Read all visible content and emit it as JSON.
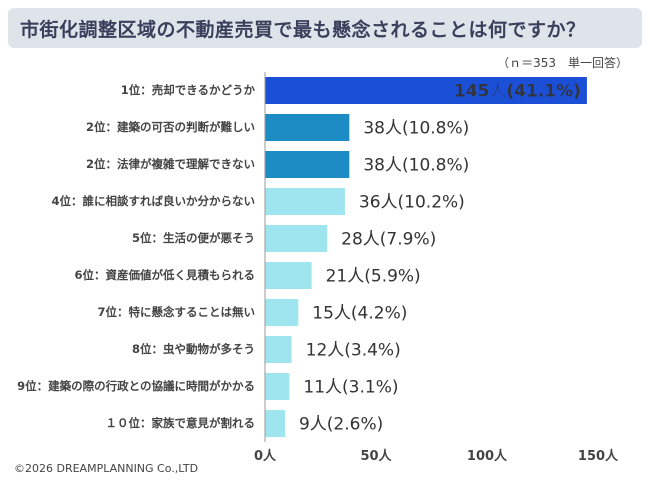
{
  "title": "市街化調整区域の不動産売買で最も懸念されることは何ですか？",
  "note": "（ｎ＝353　単一回答）",
  "copyright": "©2026 DREAMPLANNING Co.,LTD",
  "colors": {
    "title_band": "#dfe4ea",
    "title_text": "#3a3f5c",
    "rank1": "#1b4fd6",
    "rank2": "#1e8cc4",
    "rest": "#9fe5ef",
    "axis": "#999999"
  },
  "chart_data": {
    "type": "bar",
    "orientation": "horizontal",
    "categories": [
      "1位：売却できるかどうか",
      "2位：建築の可否の判断が難しい",
      "2位：法律が複雑で理解できない",
      "4位：誰に相談すれば良いか分からない",
      "5位：生活の便が悪そう",
      "6位：資産価値が低く見積もられる",
      "7位：特に懸念することは無い",
      "8位：虫や動物が多そう",
      "9位：建築の際の行政との協議に時間がかかる",
      "１０位：家族で意見が割れる"
    ],
    "values": [
      145,
      38,
      38,
      36,
      28,
      21,
      15,
      12,
      11,
      9
    ],
    "value_labels": [
      "145人(41.1%)",
      "38人(10.8%)",
      "38人(10.8%)",
      "36人(10.2%)",
      "28人(7.9%)",
      "21人(5.9%)",
      "15人(4.2%)",
      "12人(3.4%)",
      "11人(3.1%)",
      "9人(2.6%)"
    ],
    "bar_colors": [
      "#1b4fd6",
      "#1e8cc4",
      "#1e8cc4",
      "#9fe5ef",
      "#9fe5ef",
      "#9fe5ef",
      "#9fe5ef",
      "#9fe5ef",
      "#9fe5ef",
      "#9fe5ef"
    ],
    "xlim": [
      0,
      150
    ],
    "xticks": [
      0,
      50,
      100,
      150
    ],
    "xtick_labels": [
      "0人",
      "50人",
      "100人",
      "150人"
    ],
    "grid": false
  }
}
